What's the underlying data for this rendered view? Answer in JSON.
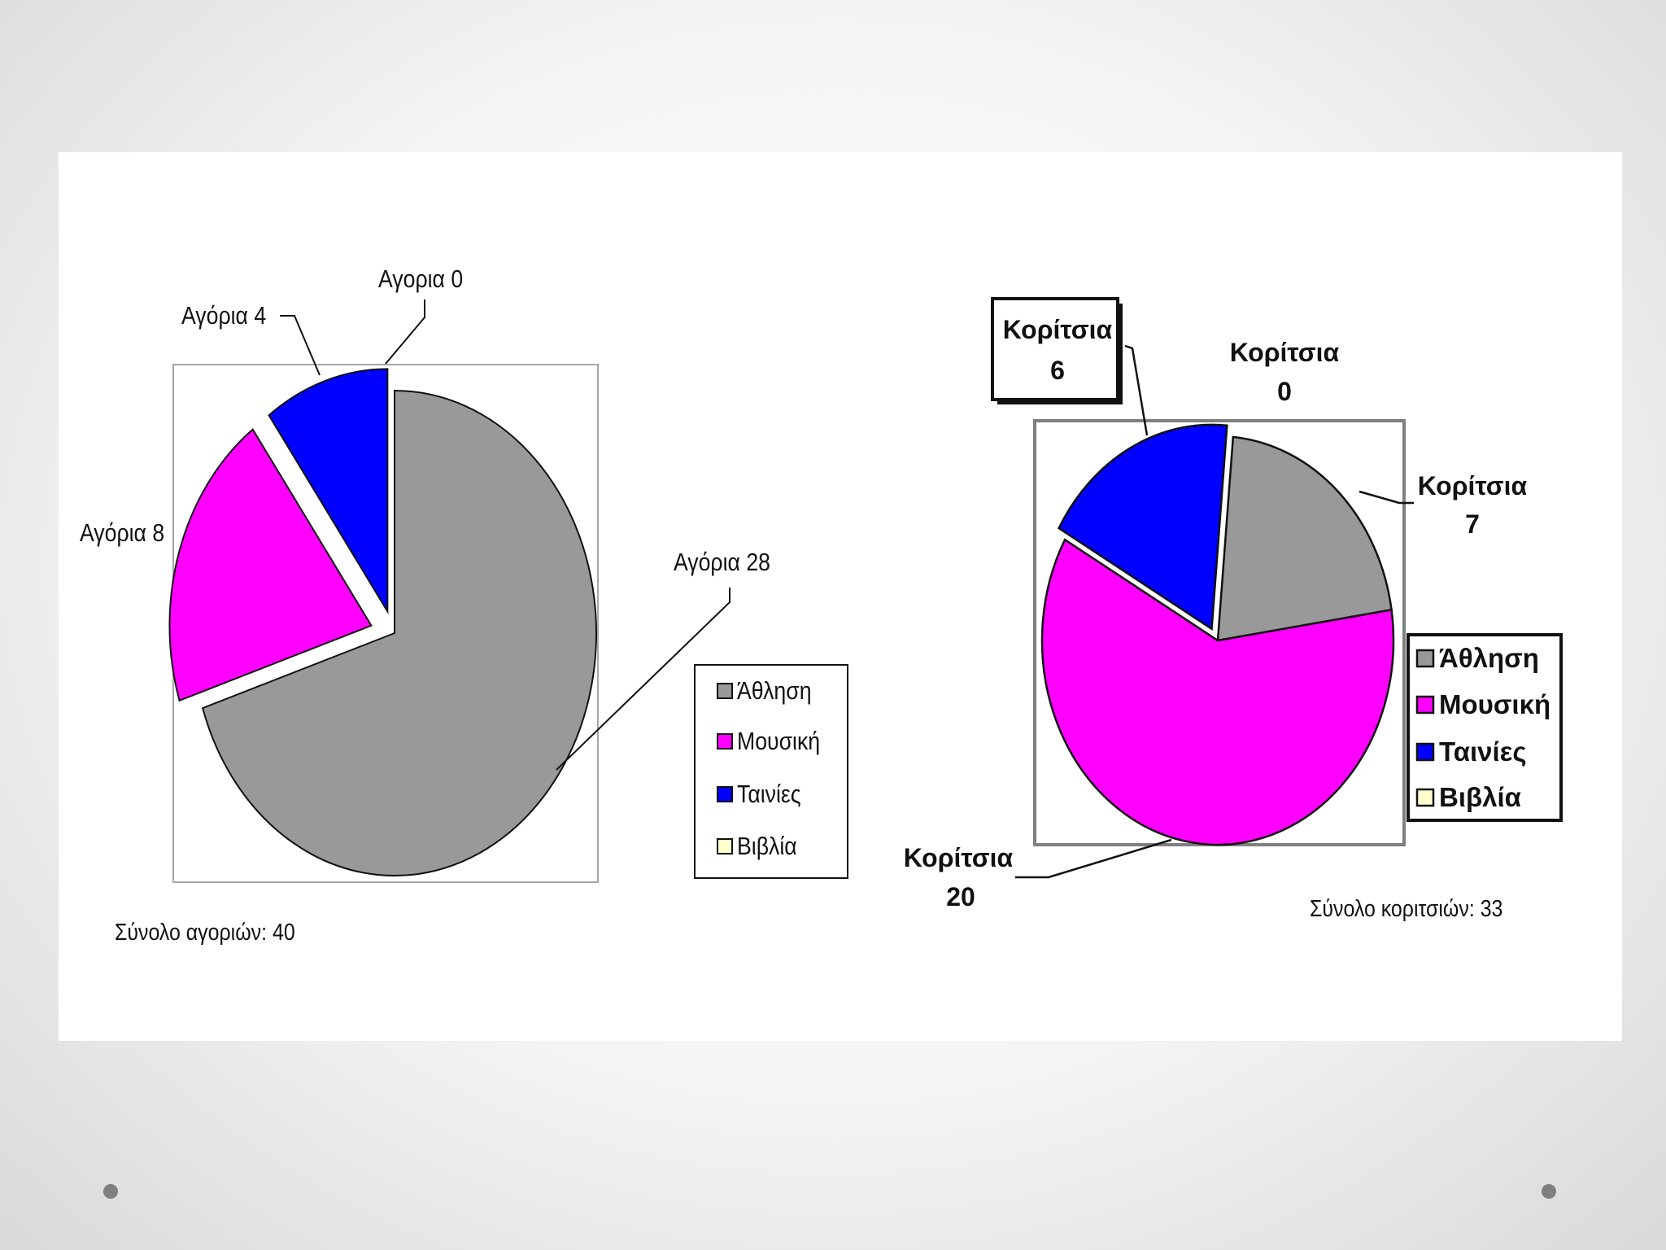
{
  "colors": {
    "Άθληση": "#999999",
    "Μουσική": "#ff00ff",
    "Ταινίες": "#0000ff",
    "Βιβλία": "#ffffcc"
  },
  "chart_data": [
    {
      "type": "pie",
      "title": "",
      "legend": [
        "Άθληση",
        "Μουσική",
        "Ταινίες",
        "Βιβλία"
      ],
      "legend_position": "right",
      "slices": [
        {
          "category": "Άθληση",
          "value": 28,
          "label": "Αγόρια 28"
        },
        {
          "category": "Μουσική",
          "value": 8,
          "label": "Αγόρια 8"
        },
        {
          "category": "Ταινίες",
          "value": 4,
          "label": "Αγόρια 4"
        },
        {
          "category": "Βιβλία",
          "value": 0,
          "label": "Αγορια 0"
        }
      ],
      "total_label": "Σύνολο αγοριών: 40"
    },
    {
      "type": "pie",
      "title": "",
      "legend": [
        "Άθληση",
        "Μουσική",
        "Ταινίες",
        "Βιβλία"
      ],
      "legend_position": "right",
      "slices": [
        {
          "category": "Άθληση",
          "value": 7,
          "label": "Κορίτσια 7",
          "label_lines": [
            "Κορίτσια",
            "7"
          ]
        },
        {
          "category": "Μουσική",
          "value": 20,
          "label": "Κορίτσια 20",
          "label_lines": [
            "Κορίτσια",
            "20"
          ]
        },
        {
          "category": "Ταινίες",
          "value": 6,
          "label": "Κορίτσια 6",
          "label_lines": [
            "Κορίτσια",
            "6"
          ]
        },
        {
          "category": "Βιβλία",
          "value": 0,
          "label": "Κορίτσια 0",
          "label_lines": [
            "Κορίτσια",
            "0"
          ]
        }
      ],
      "total_label": "Σύνολο κοριτσιών: 33"
    }
  ]
}
